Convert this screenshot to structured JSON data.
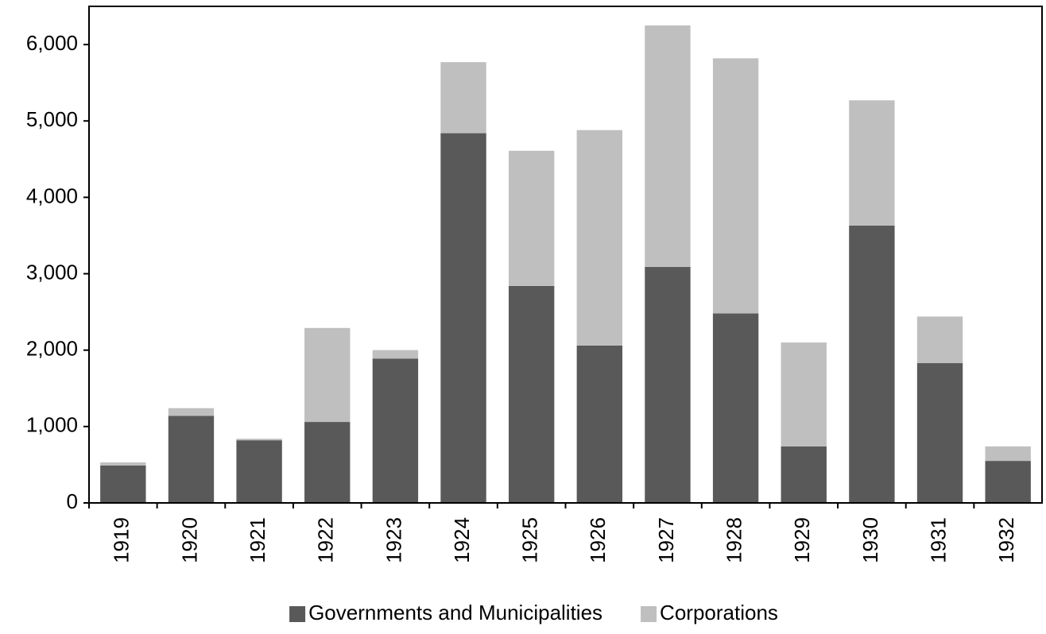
{
  "chart_data": {
    "type": "stacked_bar",
    "categories": [
      "1919",
      "1920",
      "1921",
      "1922",
      "1923",
      "1924",
      "1925",
      "1926",
      "1927",
      "1928",
      "1929",
      "1930",
      "1931",
      "1932"
    ],
    "series": [
      {
        "name": "Governments and Municipalities",
        "color": "#595959",
        "values": [
          490,
          1140,
          820,
          1060,
          1890,
          4840,
          2840,
          2060,
          3090,
          2480,
          740,
          3630,
          1830,
          550
        ]
      },
      {
        "name": "Corporations",
        "color": "#bfbfbf",
        "values": [
          40,
          100,
          20,
          1230,
          110,
          930,
          1770,
          2820,
          3160,
          3340,
          1360,
          1640,
          610,
          190
        ]
      }
    ],
    "ylim": [
      0,
      6500
    ],
    "yticks": [
      0,
      {
        "value": 1000,
        "label": "1,000"
      },
      {
        "value": 2000,
        "label": "2,000"
      },
      {
        "value": 3000,
        "label": "3,000"
      },
      {
        "value": 4000,
        "label": "4,000"
      },
      {
        "value": 5000,
        "label": "5,000"
      },
      {
        "value": 6000,
        "label": "6,000"
      }
    ],
    "grid": false,
    "legend": "bottom"
  }
}
